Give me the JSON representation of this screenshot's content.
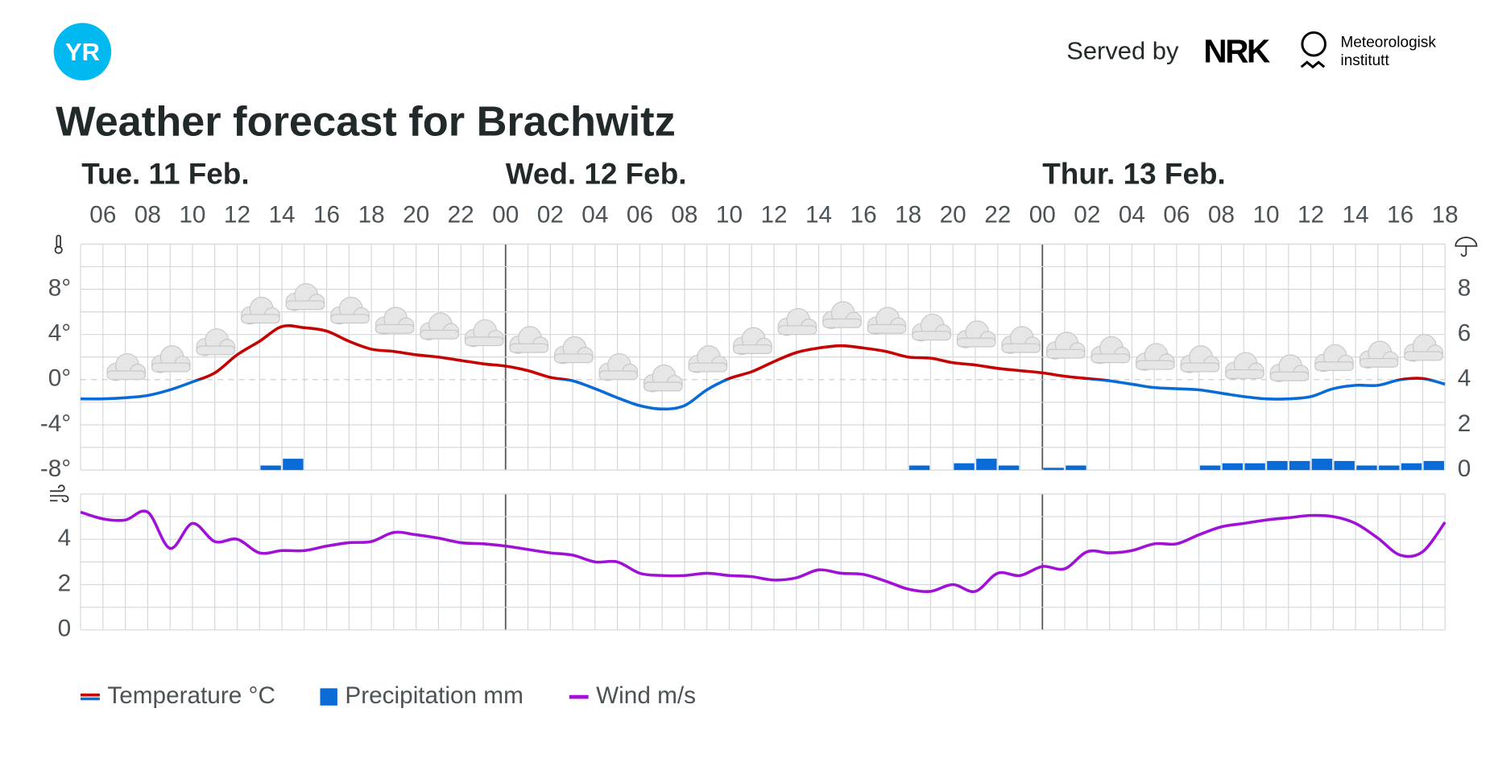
{
  "header": {
    "logo": "YR",
    "served_by": "Served by",
    "nrk": "NRK",
    "met": [
      "Meteorologisk",
      "institutt"
    ]
  },
  "chart_data": {
    "type": "line",
    "title": "Weather forecast for Brachwitz",
    "days": [
      "Tue. 11 Feb.",
      "Wed. 12 Feb.",
      "Thur. 13 Feb."
    ],
    "categories": [
      null,
      "06",
      null,
      "08",
      null,
      "10",
      null,
      "12",
      null,
      "14",
      null,
      "16",
      null,
      "18",
      null,
      "20",
      null,
      "22",
      null,
      "00",
      null,
      "02",
      null,
      "04",
      null,
      "06",
      null,
      "08",
      null,
      "10",
      null,
      "12",
      null,
      "14",
      null,
      "16",
      null,
      "18",
      null,
      "20",
      null,
      "22",
      null,
      "00",
      null,
      "02",
      null,
      "04",
      null,
      "06",
      null,
      "08",
      null,
      "10",
      null,
      "12",
      null,
      "14",
      null,
      "16",
      null,
      "18"
    ],
    "series": [
      {
        "name": "Temperature °C",
        "color": "#c60000",
        "color_below_zero": "#0a6bd6",
        "values": [
          -1.7,
          -1.7,
          -1.6,
          -1.4,
          -0.9,
          -0.2,
          0.6,
          2.2,
          3.4,
          4.7,
          4.6,
          4.3,
          3.4,
          2.7,
          2.5,
          2.2,
          2.0,
          1.7,
          1.4,
          1.2,
          0.8,
          0.2,
          -0.1,
          -0.8,
          -1.6,
          -2.3,
          -2.6,
          -2.3,
          -0.9,
          0.1,
          0.7,
          1.6,
          2.4,
          2.8,
          3.0,
          2.8,
          2.5,
          2.0,
          1.9,
          1.5,
          1.3,
          1.0,
          0.8,
          0.6,
          0.3,
          0.1,
          -0.1,
          -0.4,
          -0.7,
          -0.8,
          -0.9,
          -1.2,
          -1.5,
          -1.7,
          -1.7,
          -1.5,
          -0.8,
          -0.5,
          -0.5,
          0.0,
          0.1,
          -0.4
        ]
      },
      {
        "name": "Precipitation mm",
        "color": "#0a6bd6",
        "axis": "y2",
        "values": [
          0,
          0,
          0,
          0,
          0,
          0,
          0,
          0,
          0.2,
          0.5,
          0,
          0,
          0,
          0,
          0,
          0,
          0,
          0,
          0,
          0,
          0,
          0,
          0,
          0,
          0,
          0,
          0,
          0,
          0,
          0,
          0,
          0,
          0,
          0,
          0,
          0,
          0,
          0.2,
          0,
          0.3,
          0.5,
          0.2,
          0,
          0.1,
          0.2,
          0,
          0,
          0,
          0,
          0,
          0.2,
          0.3,
          0.3,
          0.4,
          0.4,
          0.5,
          0.4,
          0.2,
          0.2,
          0.3,
          0.4,
          0
        ]
      },
      {
        "name": "Wind m/s",
        "color": "#a010d6",
        "axis": "wind",
        "values": [
          5.2,
          4.9,
          4.85,
          5.2,
          3.6,
          4.7,
          3.9,
          4.0,
          3.4,
          3.5,
          3.5,
          3.7,
          3.85,
          3.9,
          4.3,
          4.2,
          4.05,
          3.85,
          3.8,
          3.7,
          3.55,
          3.4,
          3.3,
          3.0,
          3.0,
          2.5,
          2.4,
          2.4,
          2.5,
          2.4,
          2.35,
          2.2,
          2.3,
          2.65,
          2.5,
          2.45,
          2.15,
          1.8,
          1.7,
          2.0,
          1.7,
          2.5,
          2.4,
          2.8,
          2.7,
          3.45,
          3.4,
          3.5,
          3.8,
          3.8,
          4.2,
          4.55,
          4.7,
          4.85,
          4.95,
          5.05,
          5.0,
          4.7,
          4.05,
          3.3,
          3.45,
          4.75
        ]
      }
    ],
    "ylim": [
      -8,
      12
    ],
    "yticks": [
      {
        "value": 8,
        "label": "8°"
      },
      {
        "value": 4,
        "label": "4°"
      },
      {
        "value": 0,
        "label": "0°"
      },
      {
        "value": -4,
        "label": "-4°"
      },
      {
        "value": -8,
        "label": "-8°"
      }
    ],
    "ygrid": [
      -8,
      -6,
      -4,
      -2,
      0,
      2,
      4,
      6,
      8,
      10,
      12
    ],
    "y2lim": [
      0,
      10
    ],
    "y2ticks": [
      0,
      2,
      4,
      6,
      8
    ],
    "wind_ylim": [
      0,
      6
    ],
    "wind_yticks": [
      0,
      2,
      4
    ],
    "wind_grid": [
      0,
      1,
      2,
      3,
      4,
      5,
      6
    ],
    "grid": true
  }
}
